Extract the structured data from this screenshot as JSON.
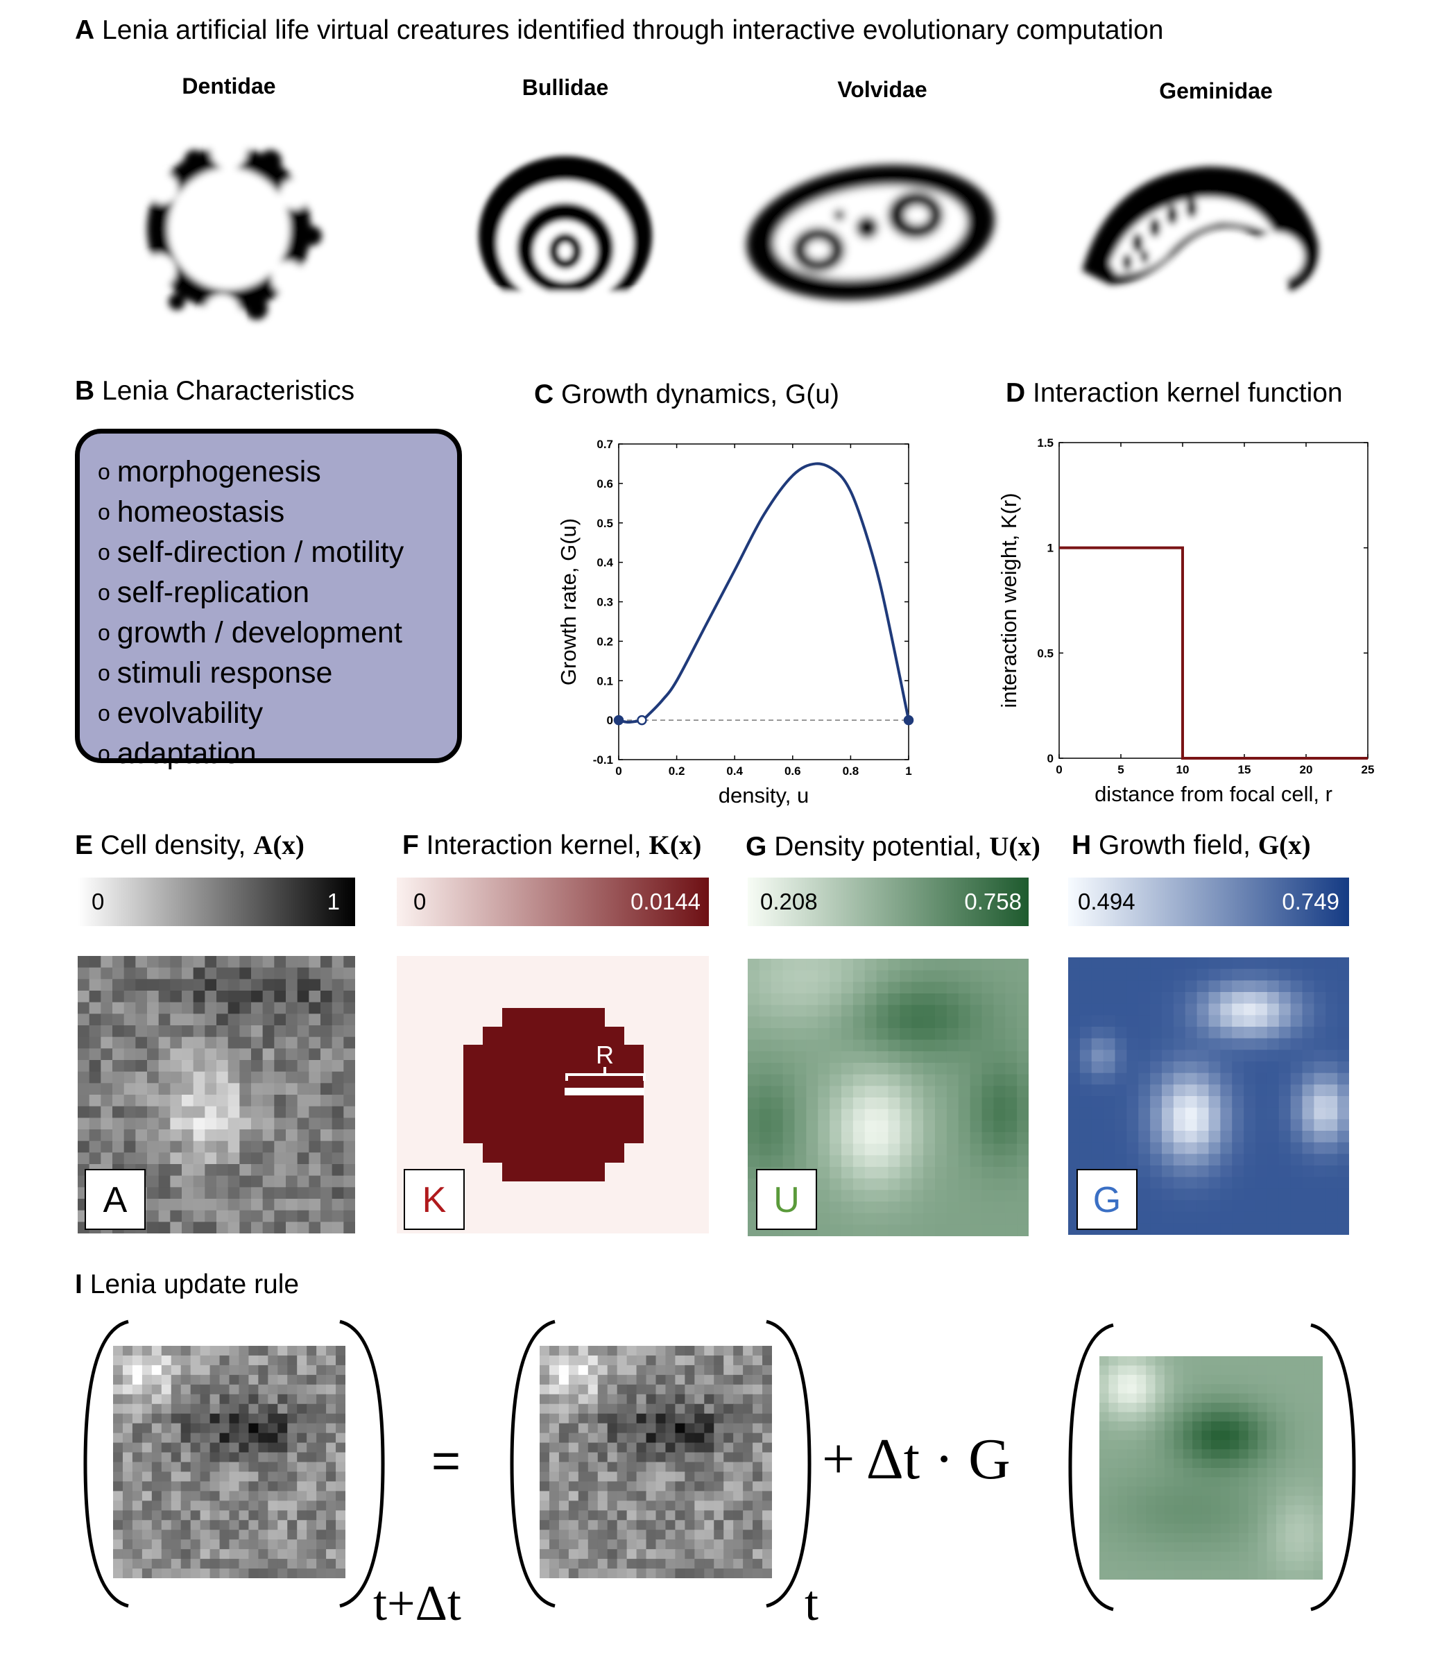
{
  "panel_a": {
    "letter": "A",
    "title": "Lenia artificial life virtual creatures identified through interactive evolutionary computation",
    "creatures": [
      "Dentidae",
      "Bullidae",
      "Volvidae",
      "Geminidae"
    ]
  },
  "panel_b": {
    "letter": "B",
    "title": "Lenia Characteristics",
    "items": [
      "morphogenesis",
      "homeostasis",
      "self-direction / motility",
      "self-replication",
      "growth / development",
      "stimuli response",
      "evolvability",
      "adaptation"
    ],
    "bullet": "o",
    "box_color": "#a7a8cb"
  },
  "panel_c": {
    "letter": "C",
    "title": "Growth dynamics, G(u)",
    "chart_data": {
      "type": "line",
      "xlabel": "density, u",
      "ylabel": "Growth rate, G(u)",
      "xlim": [
        0,
        1
      ],
      "ylim": [
        -0.1,
        0.7
      ],
      "xticks": [
        "0",
        "0.2",
        "0.4",
        "0.6",
        "0.8",
        "1"
      ],
      "yticks": [
        "-0.1",
        "0",
        "0.1",
        "0.2",
        "0.3",
        "0.4",
        "0.5",
        "0.6",
        "0.7"
      ],
      "series": [
        {
          "color": "#1f3a7a",
          "x": [
            0,
            0.03,
            0.06,
            0.08,
            0.1,
            0.15,
            0.2,
            0.3,
            0.4,
            0.5,
            0.6,
            0.68,
            0.75,
            0.8,
            0.85,
            0.9,
            0.95,
            1.0
          ],
          "y": [
            0,
            -0.005,
            -0.003,
            0,
            0.012,
            0.05,
            0.1,
            0.24,
            0.38,
            0.52,
            0.62,
            0.65,
            0.63,
            0.58,
            0.48,
            0.35,
            0.18,
            0
          ]
        }
      ],
      "markers": [
        {
          "x": 0,
          "y": 0,
          "filled": true
        },
        {
          "x": 0.08,
          "y": 0,
          "filled": false
        },
        {
          "x": 1,
          "y": 0,
          "filled": true
        }
      ],
      "zero_line": "dashed"
    }
  },
  "panel_d": {
    "letter": "D",
    "title": "Interaction kernel function",
    "chart_data": {
      "type": "line",
      "xlabel": "distance from focal cell, r",
      "ylabel": "interaction weight, K(r)",
      "xlim": [
        0,
        25
      ],
      "ylim": [
        0,
        1.5
      ],
      "xticks": [
        "0",
        "5",
        "10",
        "15",
        "20",
        "25"
      ],
      "yticks": [
        "0",
        "0.5",
        "1",
        "1.5"
      ],
      "series": [
        {
          "color": "#7a1416",
          "x": [
            0,
            10,
            10,
            25
          ],
          "y": [
            1,
            1,
            0,
            0
          ]
        }
      ]
    }
  },
  "panel_e": {
    "letter": "E",
    "title_text": "Cell density,",
    "title_math": "A(x)",
    "cmin": "0",
    "cmax": "1",
    "label": "A"
  },
  "panel_f": {
    "letter": "F",
    "title_text": "Interaction kernel,",
    "title_math": "K(x)",
    "cmin": "0",
    "cmax": "0.0144",
    "label": "K",
    "radius_label": "R",
    "color": "#6e1014"
  },
  "panel_g": {
    "letter": "G",
    "title_text": "Density potential,",
    "title_math": "U(x)",
    "cmin": "0.208",
    "cmax": "0.758",
    "label": "U",
    "color": "#1e5a2e"
  },
  "panel_h": {
    "letter": "H",
    "title_text": "Growth field,",
    "title_math": "G(x)",
    "cmin": "0.494",
    "cmax": "0.749",
    "label": "G",
    "color": "#153b84"
  },
  "panel_i": {
    "letter": "I",
    "title": "Lenia update rule",
    "sub_left": "t+Δt",
    "equals": "=",
    "sub_mid": "t",
    "plus_term": "+ Δt · G"
  }
}
